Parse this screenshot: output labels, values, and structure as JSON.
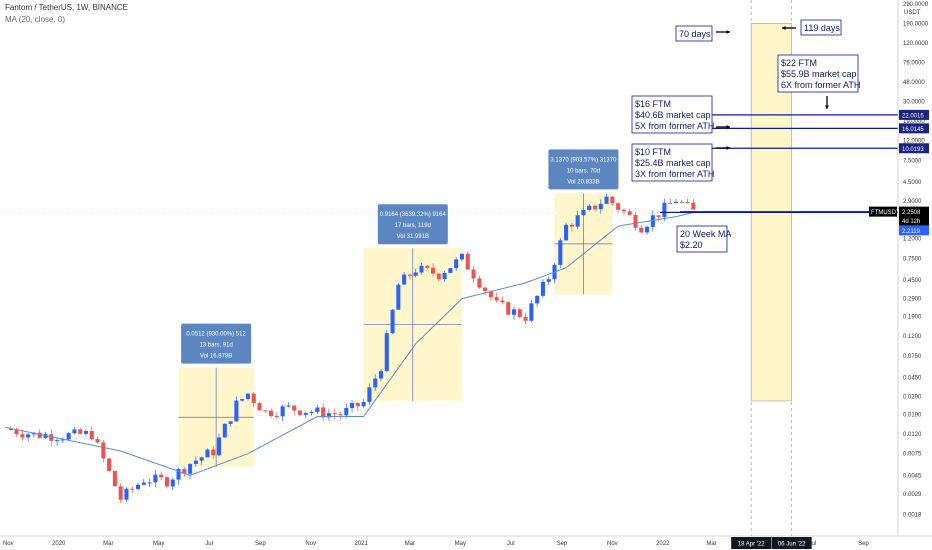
{
  "header": {
    "title": "Fantom / TetherUS, 1W, BINANCE",
    "indicator": "MA (20, close, 0)"
  },
  "colors": {
    "up": "#2962ff",
    "down": "#ef5350",
    "ma": "#5b8bd9",
    "highlight_fill": "#fff6c8",
    "highlight_stroke": "#9e9e9e",
    "annotation": "#0d1a9e",
    "measure_box": "#5b86c2"
  },
  "axis": {
    "currency": "USDT",
    "y_ticks": [
      "290.0000",
      "190.0000",
      "120.0000",
      "76.0000",
      "48.0000",
      "30.0000",
      "19.0000",
      "12.0000",
      "7.5000",
      "4.5000",
      "2.9000",
      "2.0000",
      "1.2000",
      "0.7500",
      "0.4500",
      "0.2900",
      "0.1900",
      "0.1200",
      "0.0750",
      "0.0450",
      "0.0290",
      "0.0190",
      "0.0120",
      "0.0075",
      "0.0045",
      "0.0029",
      "0.0018"
    ],
    "x_ticks": [
      "Nov",
      "2020",
      "Mar",
      "May",
      "Jul",
      "Sep",
      "Nov",
      "2021",
      "Mar",
      "May",
      "Jul",
      "Sep",
      "Nov",
      "2022",
      "Mar",
      "Jul",
      "Sep"
    ],
    "date_tags": [
      "18 Apr '22",
      "06 Jun '22"
    ],
    "price_tags": [
      "22.0015",
      "16.0145",
      "10.0193",
      "2.2508",
      "4d 12h",
      "2.2119"
    ],
    "symbol_tag": "FTMUSDT"
  },
  "measurements": [
    {
      "lines": [
        "0.0512 (930.00%) 512",
        "13 bars, 91d",
        "Vol 16.878B"
      ]
    },
    {
      "lines": [
        "0.9164 (3639.32%) 9164",
        "17 bars, 119d",
        "Vol 31.991B"
      ]
    },
    {
      "lines": [
        "3.1370 (903.57%) 31370",
        "10 bars, 70d",
        "Vol 20.833B"
      ]
    }
  ],
  "annotations": {
    "days_70": "70 days",
    "days_119": "119 days",
    "target_22": [
      "$22 FTM",
      "$55.9B market cap",
      "6X from former ATH"
    ],
    "target_16": [
      "$16 FTM",
      "$40.6B market cap",
      "5X from former ATH"
    ],
    "target_10": [
      "$10 FTM",
      "$25.4B market cap",
      "3X from former ATH"
    ],
    "ma_label": [
      "20 Week MA",
      "$2.20"
    ]
  },
  "chart_data": {
    "type": "candlestick",
    "title": "Fantom / TetherUS, 1W, BINANCE",
    "y_scale": "log",
    "y_unit": "USDT",
    "ylim": [
      0.0015,
      300
    ],
    "x_range": [
      "2019-10-28",
      "2022-10-03"
    ],
    "grid": false,
    "series": [
      {
        "name": "FTMUSDT",
        "close_path": [
          [
            "2019-10-28",
            0.0135
          ],
          [
            "2019-12-02",
            0.0118
          ],
          [
            "2020-01-06",
            0.0115
          ],
          [
            "2020-02-10",
            0.012
          ],
          [
            "2020-03-16",
            0.0026
          ],
          [
            "2020-04-13",
            0.0041
          ],
          [
            "2020-05-11",
            0.004
          ],
          [
            "2020-06-08",
            0.006
          ],
          [
            "2020-07-06",
            0.008
          ],
          [
            "2020-08-03",
            0.024
          ],
          [
            "2020-08-17",
            0.031
          ],
          [
            "2020-09-07",
            0.02
          ],
          [
            "2020-10-05",
            0.022
          ],
          [
            "2020-11-09",
            0.02
          ],
          [
            "2020-12-07",
            0.019
          ],
          [
            "2021-01-04",
            0.025
          ],
          [
            "2021-01-25",
            0.06
          ],
          [
            "2021-02-15",
            0.4
          ],
          [
            "2021-03-08",
            0.58
          ],
          [
            "2021-04-05",
            0.52
          ],
          [
            "2021-05-03",
            0.75
          ],
          [
            "2021-06-14",
            0.25
          ],
          [
            "2021-07-19",
            0.19
          ],
          [
            "2021-08-16",
            0.48
          ],
          [
            "2021-09-06",
            1.6
          ],
          [
            "2021-10-25",
            3.1
          ],
          [
            "2021-12-06",
            1.6
          ],
          [
            "2022-01-17",
            3.0
          ],
          [
            "2022-02-07",
            2.25
          ]
        ]
      },
      {
        "name": "MA (20, close, 0)",
        "path": [
          [
            "2019-10-28",
            0.014
          ],
          [
            "2020-03-16",
            0.008
          ],
          [
            "2020-06-08",
            0.0045
          ],
          [
            "2020-08-17",
            0.0075
          ],
          [
            "2020-11-09",
            0.018
          ],
          [
            "2021-01-04",
            0.018
          ],
          [
            "2021-03-08",
            0.1
          ],
          [
            "2021-05-03",
            0.29
          ],
          [
            "2021-07-19",
            0.42
          ],
          [
            "2021-09-06",
            0.6
          ],
          [
            "2021-11-08",
            1.6
          ],
          [
            "2022-01-17",
            2.0
          ],
          [
            "2022-02-07",
            2.2
          ]
        ]
      }
    ],
    "levels": [
      22.0015,
      16.0145,
      10.0193,
      2.2119
    ],
    "projection_window": [
      "2022-04-18",
      "2022-06-06"
    ]
  }
}
